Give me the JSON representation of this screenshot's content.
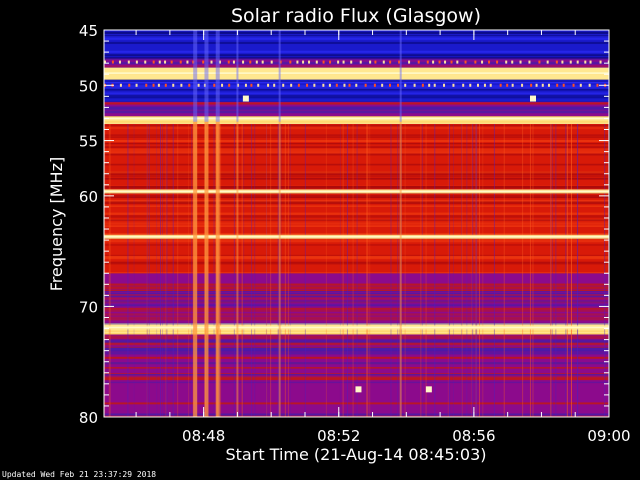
{
  "chart_data": {
    "type": "heatmap",
    "title": "Solar radio Flux (Glasgow)",
    "xlabel": "Start Time (21-Aug-14 08:45:03)",
    "ylabel": "Frequency [MHz]",
    "footer": "Updated Wed Feb 21 23:37:29 2018",
    "x_range": [
      "08:45:03",
      "09:00:00"
    ],
    "y_range_mhz": [
      45,
      80
    ],
    "y_axis": "reversed",
    "x_ticks": [
      "08:48",
      "08:52",
      "08:56",
      "09:00"
    ],
    "y_ticks": [
      45,
      50,
      55,
      60,
      70,
      80
    ],
    "frequency_bands": [
      {
        "from_mhz": 45.0,
        "to_mhz": 47.5,
        "level": "low"
      },
      {
        "from_mhz": 47.5,
        "to_mhz": 48.4,
        "level": "medium"
      },
      {
        "from_mhz": 48.4,
        "to_mhz": 49.5,
        "level": "very-high"
      },
      {
        "from_mhz": 49.5,
        "to_mhz": 51.5,
        "level": "low"
      },
      {
        "from_mhz": 51.5,
        "to_mhz": 52.8,
        "level": "medium"
      },
      {
        "from_mhz": 52.8,
        "to_mhz": 53.5,
        "level": "very-high"
      },
      {
        "from_mhz": 53.5,
        "to_mhz": 67.0,
        "level": "high"
      },
      {
        "from_mhz": 67.0,
        "to_mhz": 71.5,
        "level": "medium"
      },
      {
        "from_mhz": 71.5,
        "to_mhz": 72.5,
        "level": "very-high"
      },
      {
        "from_mhz": 72.5,
        "to_mhz": 80.0,
        "level": "medium"
      }
    ],
    "bright_lines_mhz": [
      48.9,
      53.0,
      59.6,
      63.7,
      71.9
    ],
    "burst_times": [
      "08:47:45",
      "08:48:05",
      "08:48:25",
      "08:49:00",
      "08:50:15",
      "08:53:50"
    ],
    "hot_spots": [
      {
        "time": "08:52:35",
        "mhz": 77.5
      },
      {
        "time": "08:54:40",
        "mhz": 77.5
      },
      {
        "time": "08:49:15",
        "mhz": 51.2
      },
      {
        "time": "08:57:45",
        "mhz": 51.2
      }
    ],
    "colors": {
      "low": "#1a1acc",
      "medium": "#8c0a8c",
      "high": "#d81a08",
      "very-high": "#ffe890",
      "peak": "#fff9c8"
    }
  }
}
